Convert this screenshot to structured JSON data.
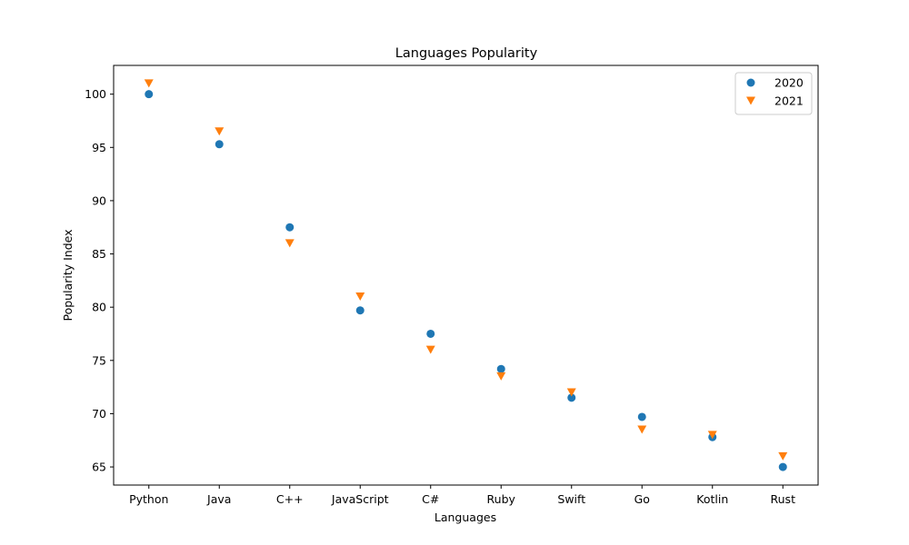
{
  "chart_data": {
    "type": "scatter",
    "title": "Languages Popularity",
    "xlabel": "Languages",
    "ylabel": "Popularity Index",
    "categories": [
      "Python",
      "Java",
      "C++",
      "JavaScript",
      "C#",
      "Ruby",
      "Swift",
      "Go",
      "Kotlin",
      "Rust"
    ],
    "series": [
      {
        "name": "2020",
        "marker": "circle",
        "color": "#1f77b4",
        "values": [
          100,
          95.3,
          87.5,
          79.7,
          77.5,
          74.2,
          71.5,
          69.7,
          67.8,
          65
        ]
      },
      {
        "name": "2021",
        "marker": "triangle-down",
        "color": "#ff7f0e",
        "values": [
          101,
          96.5,
          86,
          81,
          76,
          73.5,
          72,
          68.5,
          68,
          66
        ]
      }
    ],
    "ylim": [
      63.3,
      102.7
    ],
    "yticks": [
      65,
      70,
      75,
      80,
      85,
      90,
      95,
      100
    ],
    "ytick_labels": [
      "65",
      "70",
      "75",
      "80",
      "85",
      "90",
      "95",
      "100"
    ],
    "grid": false,
    "legend_position": "top-right"
  }
}
